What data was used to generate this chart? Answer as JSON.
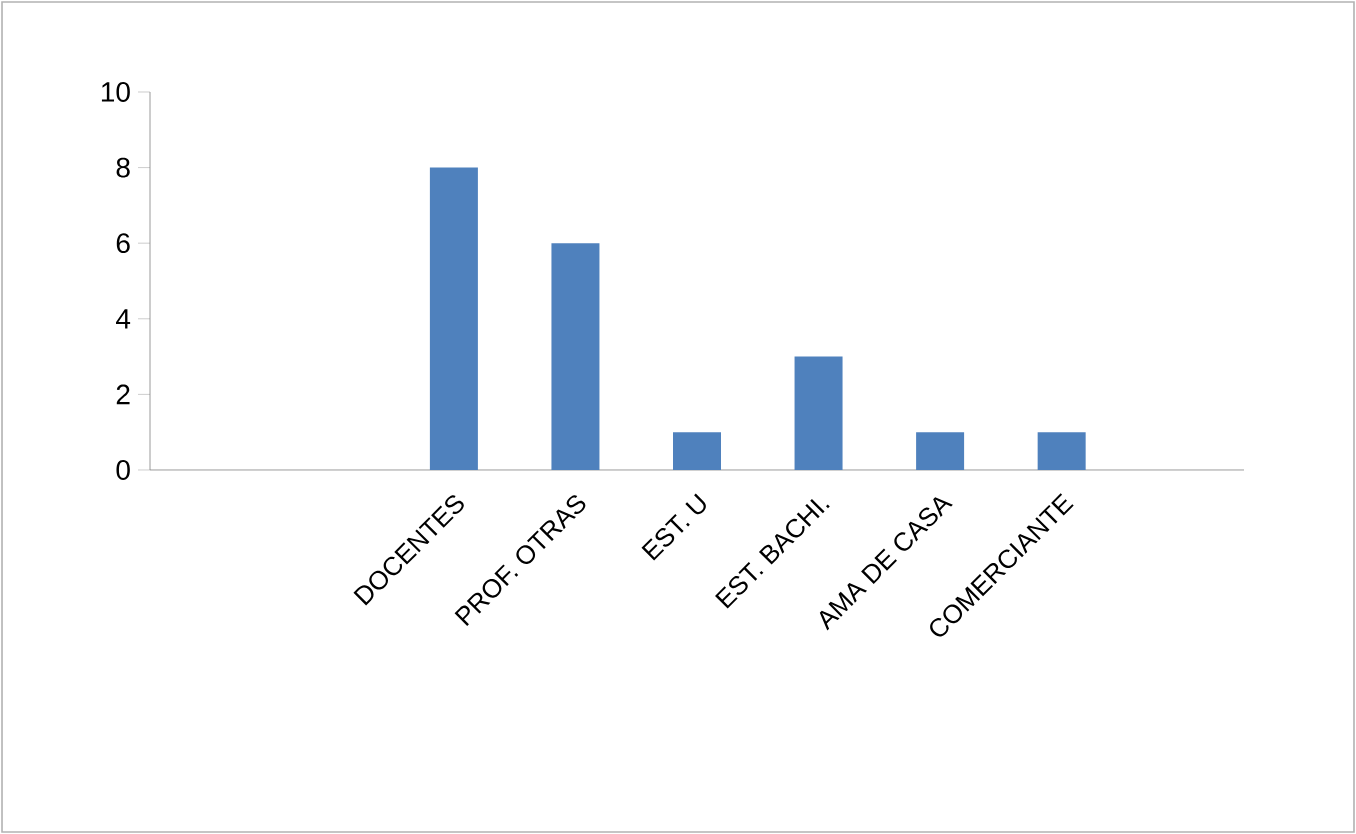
{
  "chart_data": {
    "type": "bar",
    "categories": [
      null,
      null,
      "DOCENTES",
      "PROF. OTRAS",
      "EST. U",
      "EST. BACHI.",
      "AMA DE CASA",
      "COMERCIANTE",
      null
    ],
    "values": [
      null,
      null,
      8,
      6,
      1,
      3,
      1,
      1,
      null
    ],
    "color": "#4f81bd",
    "ylim": [
      0,
      10
    ],
    "yticks": [
      0,
      2,
      4,
      6,
      8,
      10
    ],
    "grid": false
  }
}
